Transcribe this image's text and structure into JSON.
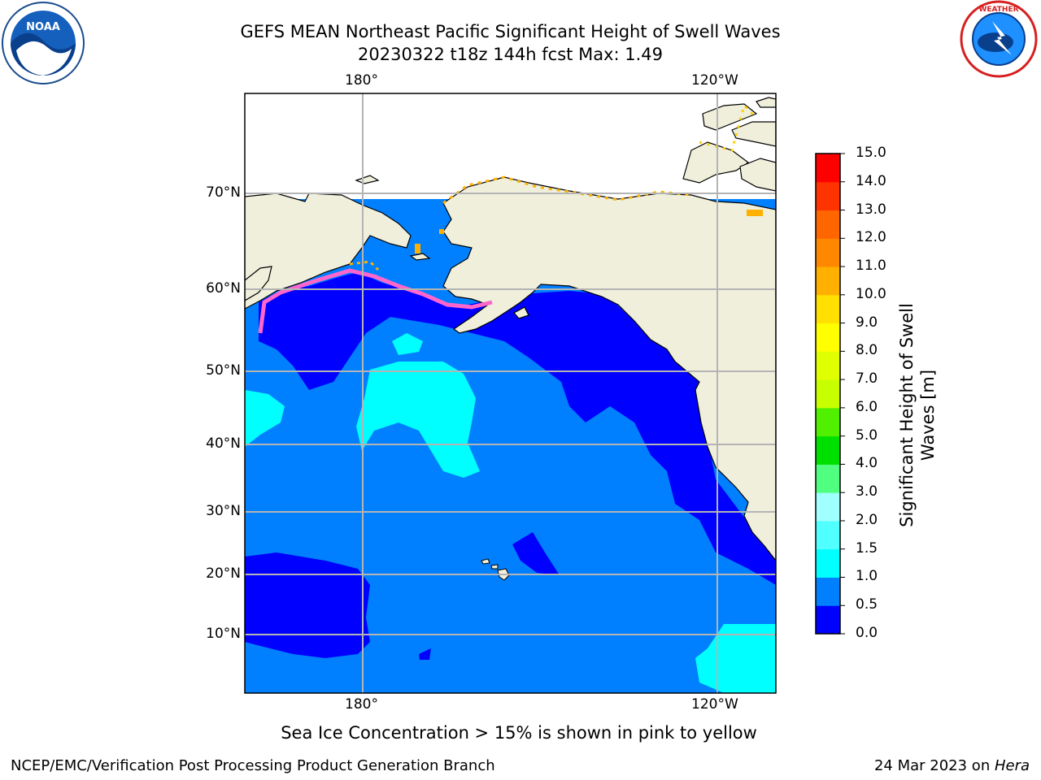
{
  "title": {
    "line1": "GEFS MEAN Northeast Pacific Significant Height of Swell Waves",
    "line2": "20230322 t18z 144h fcst   Max: 1.49"
  },
  "map": {
    "lon_labels_top": [
      "180°",
      "120°W"
    ],
    "lon_labels_bottom": [
      "180°",
      "120°W"
    ],
    "lat_labels": [
      "70°N",
      "60°N",
      "50°N",
      "40°N",
      "30°N",
      "20°N",
      "10°N"
    ]
  },
  "colorbar": {
    "title_line1": "Significant Height of Swell",
    "title_line2": "Waves [m]",
    "tick_labels": [
      "15.0",
      "14.0",
      "13.0",
      "12.0",
      "11.0",
      "10.0",
      "9.0",
      "8.0",
      "7.0",
      "6.0",
      "5.0",
      "4.0",
      "3.0",
      "2.0",
      "1.5",
      "1.0",
      "0.5",
      "0.0"
    ],
    "colors_bottom_to_top": [
      "#0000ff",
      "#0080ff",
      "#00ffff",
      "#50ffff",
      "#a0ffff",
      "#50ff80",
      "#00e000",
      "#50f000",
      "#c8ff00",
      "#e0ff00",
      "#ffff00",
      "#ffe000",
      "#ffb000",
      "#ff8800",
      "#ff6600",
      "#ff3300",
      "#ff0000"
    ]
  },
  "colors": {
    "land": "#efefdc",
    "ocean_0_0_5": "#0000ff",
    "ocean_0_5_1_0": "#0080ff",
    "ocean_1_0_1_5": "#00ffff",
    "ice": "#ff66cc",
    "grid": "#b4b4b4"
  },
  "logos": {
    "left": "NOAA",
    "right": "NATIONAL WEATHER SERVICE"
  },
  "footer": {
    "note": "Sea Ice Concentration > 15% is shown in pink to yellow",
    "credit_left": "NCEP/EMC/Verification Post Processing Product Generation Branch",
    "credit_right_prefix": "24 Mar 2023 on ",
    "credit_right_host": "Hera"
  }
}
